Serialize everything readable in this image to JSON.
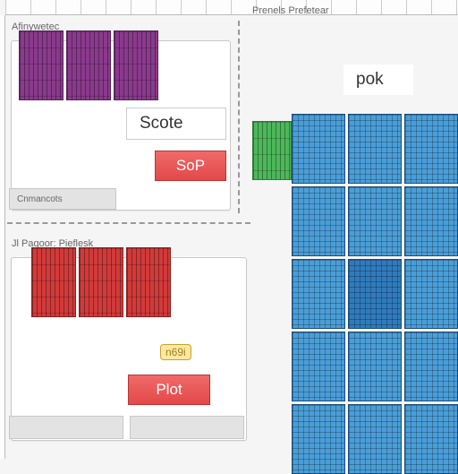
{
  "ruler_top_label": " ",
  "top": {
    "left_panel_title": "Afinywetec",
    "right_panel_title": "Prenels Prefetear",
    "scote_label": "Scote",
    "pok_label": "pok",
    "sop_button": "SoP",
    "left_grey_text": "Cnmancots",
    "containers": {
      "purple": {
        "color": "#8a3a8c",
        "border": "#5a235c"
      },
      "green": {
        "color": "#4db85a",
        "border": "#2e7a37"
      }
    }
  },
  "bottom": {
    "left_panel_title": "Jl  Paqoor:  Pieflesk",
    "plot_button": "Plot",
    "left_grey_text": " ",
    "right_grey_text": " ",
    "icon_label": "n69i",
    "containers": {
      "red": {
        "color": "#d23a3a",
        "border": "#8f1f1f"
      }
    }
  },
  "blue_stack": {
    "rows": 5,
    "cols": 3,
    "color": "#4a9ed8",
    "border": "#1d4d7a",
    "highlight_cells": [
      7
    ],
    "highlight_color": "#2f7bbd"
  },
  "styling": {
    "background": "#f5f5f5",
    "panel_bg": "#ffffff",
    "panel_border": "#c9c9c9",
    "label_fontsize": 19,
    "button_bg": "#e34848",
    "button_text": "#ffffff",
    "grey_bar_bg": "#e3e3e3"
  }
}
